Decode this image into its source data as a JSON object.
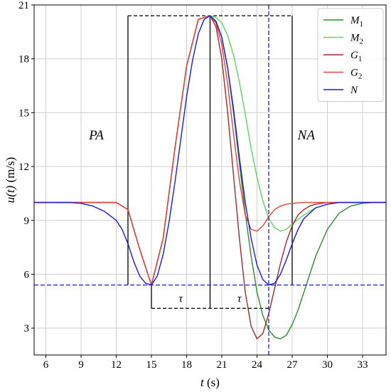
{
  "chart_data": {
    "type": "line",
    "xlabel": "t (s)",
    "ylabel": "u(t) (m/s)",
    "xlim": [
      5,
      35
    ],
    "ylim": [
      1.5,
      21
    ],
    "x_ticks": [
      6,
      9,
      12,
      15,
      18,
      21,
      24,
      27,
      30,
      33
    ],
    "y_ticks": [
      3,
      6,
      9,
      12,
      15,
      18,
      21
    ],
    "grid": true,
    "legend_position": "top-right",
    "series": [
      {
        "name": "M_1",
        "legend_main": "M",
        "legend_sub": "1",
        "color": "#2e8b2e",
        "x": [
          5,
          12,
          13,
          14,
          15,
          16,
          17,
          18,
          19,
          20,
          20.5,
          21,
          21.5,
          22,
          22.5,
          23,
          23.5,
          24,
          24.5,
          25,
          25.5,
          26,
          26.5,
          27,
          27.5,
          28,
          28.5,
          29,
          30,
          31,
          32,
          33,
          34,
          35
        ],
        "y": [
          10,
          10,
          9.6,
          7.4,
          5.4,
          8,
          13,
          17.6,
          20.2,
          20.4,
          20.1,
          19.2,
          17.5,
          15,
          12.2,
          9.4,
          7,
          5,
          3.7,
          2.9,
          2.5,
          2.4,
          2.6,
          3.2,
          4,
          5,
          6,
          7,
          8.5,
          9.4,
          9.8,
          9.95,
          10,
          10
        ]
      },
      {
        "name": "M_2",
        "legend_main": "M",
        "legend_sub": "2",
        "color": "#5fd35f",
        "x": [
          5,
          12,
          13,
          14,
          15,
          16,
          17,
          18,
          19,
          20,
          20.5,
          21,
          21.5,
          22,
          22.5,
          23,
          23.5,
          24,
          24.5,
          25,
          25.5,
          26,
          26.5,
          27,
          28,
          29,
          30,
          31,
          32,
          33,
          34,
          35
        ],
        "y": [
          10,
          10,
          9.6,
          7.4,
          5.4,
          8,
          13,
          17.6,
          20.2,
          20.4,
          20.3,
          20,
          19.3,
          18.2,
          16.7,
          14.9,
          13,
          11.4,
          10.1,
          9.1,
          8.6,
          8.4,
          8.5,
          8.8,
          9.3,
          9.7,
          9.9,
          10,
          10,
          10,
          10,
          10
        ]
      },
      {
        "name": "G_1",
        "legend_main": "G",
        "legend_sub": "1",
        "color": "#9e2a2a",
        "x": [
          5,
          12,
          13,
          14,
          15,
          16,
          17,
          18,
          19,
          20,
          20.5,
          21,
          21.5,
          22,
          22.5,
          23,
          23.5,
          24,
          24.5,
          25,
          25.5,
          26,
          26.5,
          27,
          27.5,
          28,
          28.5,
          29,
          30,
          31,
          32,
          33,
          34,
          35
        ],
        "y": [
          10,
          10,
          9.6,
          7.4,
          5.4,
          8,
          13,
          17.6,
          20.2,
          20.4,
          19.8,
          18,
          15,
          11.5,
          8,
          5,
          3.1,
          2.4,
          2.7,
          3.8,
          5.2,
          6.6,
          7.8,
          8.7,
          9.3,
          9.6,
          9.8,
          9.9,
          10,
          10,
          10,
          10,
          10,
          10
        ]
      },
      {
        "name": "G_2",
        "legend_main": "G",
        "legend_sub": "2",
        "color": "#e8413b",
        "x": [
          5,
          12,
          13,
          14,
          15,
          16,
          17,
          18,
          19,
          20,
          20.5,
          21,
          21.5,
          22,
          22.5,
          23,
          23.5,
          24,
          24.5,
          25,
          25.5,
          26,
          26.5,
          27,
          28,
          29,
          30,
          31,
          32,
          33,
          34,
          35
        ],
        "y": [
          10,
          10,
          9.6,
          7.4,
          5.4,
          8,
          13,
          17.6,
          20.2,
          20.4,
          20,
          18.8,
          16.6,
          13.8,
          11.2,
          9.3,
          8.5,
          8.4,
          8.7,
          9.2,
          9.6,
          9.8,
          9.9,
          9.95,
          10,
          10,
          10,
          10,
          10,
          10,
          10,
          10
        ]
      },
      {
        "name": "N",
        "legend_main": "N",
        "legend_sub": "",
        "color": "#1a1adb",
        "x": [
          5,
          6,
          7,
          8,
          9,
          10,
          11,
          12,
          12.5,
          13,
          13.5,
          14,
          14.5,
          15,
          15.5,
          16,
          16.5,
          17,
          17.5,
          18,
          18.5,
          19,
          19.5,
          20,
          20.5,
          21,
          21.5,
          22,
          22.5,
          23,
          23.5,
          24,
          24.5,
          25,
          25.5,
          26,
          26.5,
          27,
          27.5,
          28,
          29,
          30,
          31,
          32,
          33,
          34,
          35
        ],
        "y": [
          10,
          10,
          10,
          10,
          9.95,
          9.8,
          9.5,
          9,
          8.5,
          7.7,
          6.7,
          5.9,
          5.5,
          5.4,
          5.9,
          7.1,
          8.9,
          11.1,
          13.5,
          15.9,
          17.9,
          19.4,
          20.2,
          20.4,
          20.1,
          19.2,
          17.5,
          15.2,
          12.5,
          10,
          8,
          6.5,
          5.7,
          5.4,
          5.5,
          6,
          6.8,
          7.7,
          8.5,
          9.1,
          9.7,
          9.9,
          10,
          10,
          10,
          10,
          10
        ]
      }
    ],
    "reference_lines": [
      {
        "orientation": "horizontal",
        "value": 5.4,
        "color": "#1a1adb",
        "style": "dashed"
      },
      {
        "orientation": "vertical",
        "value": 25,
        "color": "#1a1adb",
        "style": "dashed"
      }
    ],
    "annotations": {
      "rectangle": {
        "x0": 13,
        "x1": 27,
        "y0": 5.4,
        "y1": 20.4
      },
      "divider": {
        "x": 20,
        "y0": 4.1,
        "y1": 20.4
      },
      "tau_bracket": {
        "x0": 15,
        "x1": 25,
        "y": 4.1
      },
      "labels": [
        {
          "text": "PA",
          "x": 10.3,
          "y": 13.5
        },
        {
          "text": "NA",
          "x": 28.2,
          "y": 13.5
        },
        {
          "text": "τ",
          "x": 17.5,
          "y": 4.45
        },
        {
          "text": "τ",
          "x": 22.5,
          "y": 4.45
        }
      ]
    }
  }
}
